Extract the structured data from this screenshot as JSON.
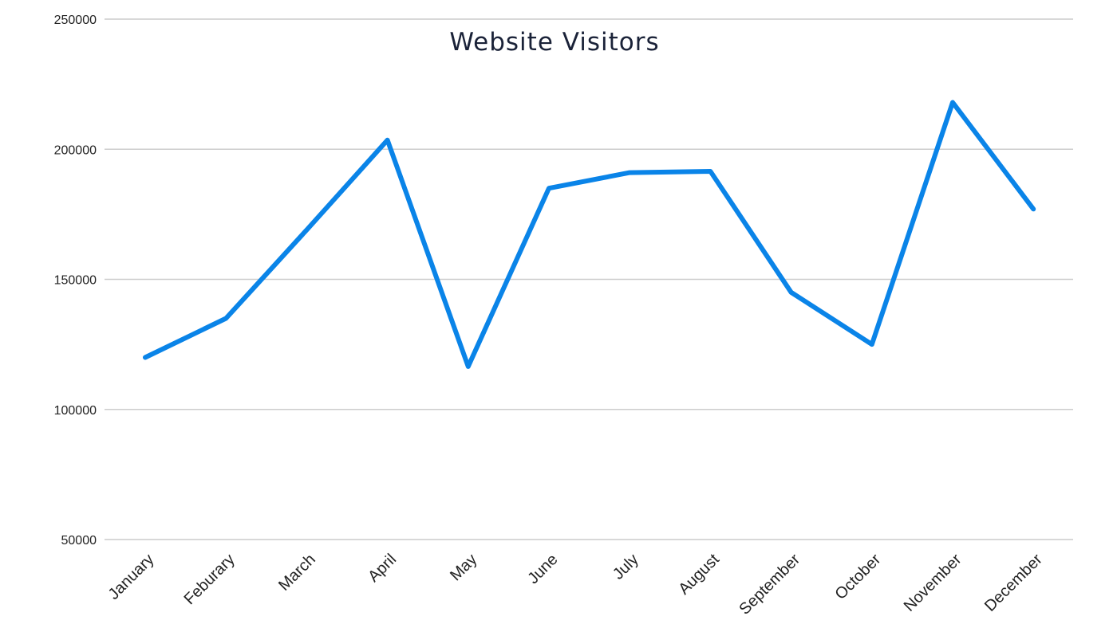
{
  "chart_data": {
    "type": "line",
    "title": "Website Visitors",
    "xlabel": "",
    "ylabel": "",
    "categories": [
      "January",
      "Feburary",
      "March",
      "April",
      "May",
      "June",
      "July",
      "August",
      "September",
      "October",
      "November",
      "December"
    ],
    "series": [
      {
        "values": [
          120000,
          135000,
          169000,
          203500,
          116500,
          185000,
          191000,
          191500,
          145000,
          125000,
          218000,
          177000
        ],
        "color": "#0a84e8"
      }
    ],
    "ylim": [
      50000,
      250000
    ],
    "yticks": [
      "250000",
      "200000",
      "150000",
      "100000",
      "50000"
    ],
    "grid": true,
    "legend": "none"
  }
}
